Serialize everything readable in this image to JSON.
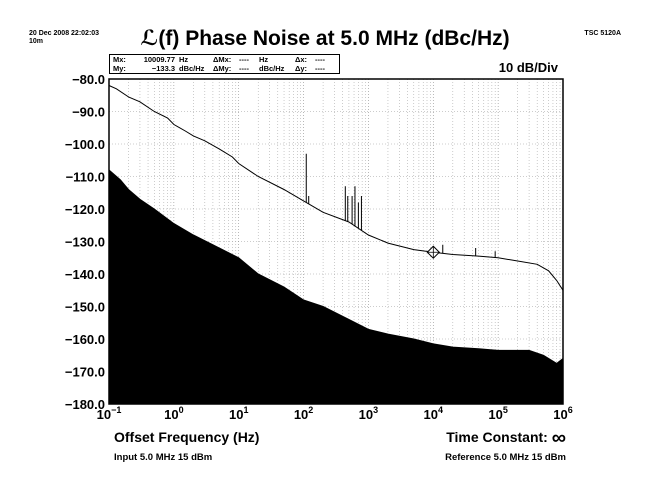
{
  "header": {
    "timestamp": "20 Dec 2008 22:02:03",
    "duration": "10m",
    "model": "TSC 5120A",
    "division": "10 dB/Div"
  },
  "marker": {
    "mx_label": "Mx:",
    "mx_value": "10009.77",
    "mx_unit": "Hz",
    "my_label": "My:",
    "my_value": "−133.3",
    "my_unit": "dBc/Hz",
    "dmx_label": "ΔMx:",
    "dmx_value": "----",
    "dmx_unit": "Hz",
    "dmy_label": "ΔMy:",
    "dmy_value": "----",
    "dmy_unit": "dBc/Hz",
    "dx_label": "Δx:",
    "dx_value": "----",
    "dy_label": "Δy:",
    "dy_value": "----"
  },
  "footer": {
    "time_constant_label": "Time Constant:",
    "time_constant_symbol": "∞",
    "input": "Input 5.0 MHz 15 dBm",
    "reference": "Reference 5.0 MHz 15 dBm"
  },
  "chart_data": {
    "type": "line",
    "title": "ℒ(f) Phase Noise at 5.0 MHz (dBc/Hz)",
    "xlabel": "Offset Frequency (Hz)",
    "ylabel": "",
    "x_scale": "log",
    "xlim": [
      0.1,
      1000000
    ],
    "ylim": [
      -180,
      -80
    ],
    "grid": true,
    "y_ticks": [
      "−80.0",
      "−90.0",
      "−100.0",
      "−110.0",
      "−120.0",
      "−130.0",
      "−140.0",
      "−150.0",
      "−160.0",
      "−170.0",
      "−180.0"
    ],
    "x_ticks": [
      {
        "base": "10",
        "exp": "−1"
      },
      {
        "base": "10",
        "exp": "0"
      },
      {
        "base": "10",
        "exp": "1"
      },
      {
        "base": "10",
        "exp": "2"
      },
      {
        "base": "10",
        "exp": "3"
      },
      {
        "base": "10",
        "exp": "4"
      },
      {
        "base": "10",
        "exp": "5"
      },
      {
        "base": "10",
        "exp": "6"
      }
    ],
    "series": [
      {
        "kind": "line",
        "points": [
          [
            0.1,
            -82
          ],
          [
            0.13,
            -83
          ],
          [
            0.2,
            -85.5
          ],
          [
            0.3,
            -87
          ],
          [
            0.5,
            -90
          ],
          [
            0.8,
            -92
          ],
          [
            1,
            -94
          ],
          [
            1.5,
            -96
          ],
          [
            2,
            -97.5
          ],
          [
            3,
            -99
          ],
          [
            5,
            -101.5
          ],
          [
            8,
            -104
          ],
          [
            10,
            -106
          ],
          [
            20,
            -110
          ],
          [
            50,
            -114
          ],
          [
            100,
            -117.5
          ],
          [
            200,
            -121
          ],
          [
            500,
            -124
          ],
          [
            1000,
            -128
          ],
          [
            2000,
            -130.5
          ],
          [
            5000,
            -132.5
          ],
          [
            10000,
            -133.3
          ],
          [
            20000,
            -134
          ],
          [
            50000,
            -134.5
          ],
          [
            100000,
            -135
          ],
          [
            200000,
            -136
          ],
          [
            400000,
            -137
          ],
          [
            600000,
            -139
          ],
          [
            800000,
            -142
          ],
          [
            1000000,
            -145
          ]
        ],
        "spurs": [
          [
            110,
            -103
          ],
          [
            120,
            -116
          ],
          [
            440,
            -113
          ],
          [
            480,
            -116
          ],
          [
            560,
            -116
          ],
          [
            620,
            -113
          ],
          [
            700,
            -118
          ],
          [
            780,
            -116
          ],
          [
            14000,
            -131
          ],
          [
            45000,
            -132
          ],
          [
            90000,
            -133
          ]
        ],
        "marker_point": [
          10009.77,
          -133.3
        ]
      },
      {
        "kind": "area",
        "points": [
          [
            0.1,
            -108
          ],
          [
            0.15,
            -111
          ],
          [
            0.2,
            -114
          ],
          [
            0.3,
            -117
          ],
          [
            0.5,
            -120
          ],
          [
            1,
            -124.5
          ],
          [
            2,
            -128
          ],
          [
            5,
            -132
          ],
          [
            10,
            -135
          ],
          [
            20,
            -140
          ],
          [
            50,
            -144
          ],
          [
            100,
            -148
          ],
          [
            200,
            -150
          ],
          [
            500,
            -154
          ],
          [
            1000,
            -157
          ],
          [
            2000,
            -158.5
          ],
          [
            5000,
            -160
          ],
          [
            10000,
            -161.5
          ],
          [
            20000,
            -162.5
          ],
          [
            50000,
            -163
          ],
          [
            100000,
            -163.5
          ],
          [
            300000,
            -163.5
          ],
          [
            500000,
            -165
          ],
          [
            800000,
            -167.5
          ],
          [
            1000000,
            -166
          ]
        ]
      }
    ]
  }
}
